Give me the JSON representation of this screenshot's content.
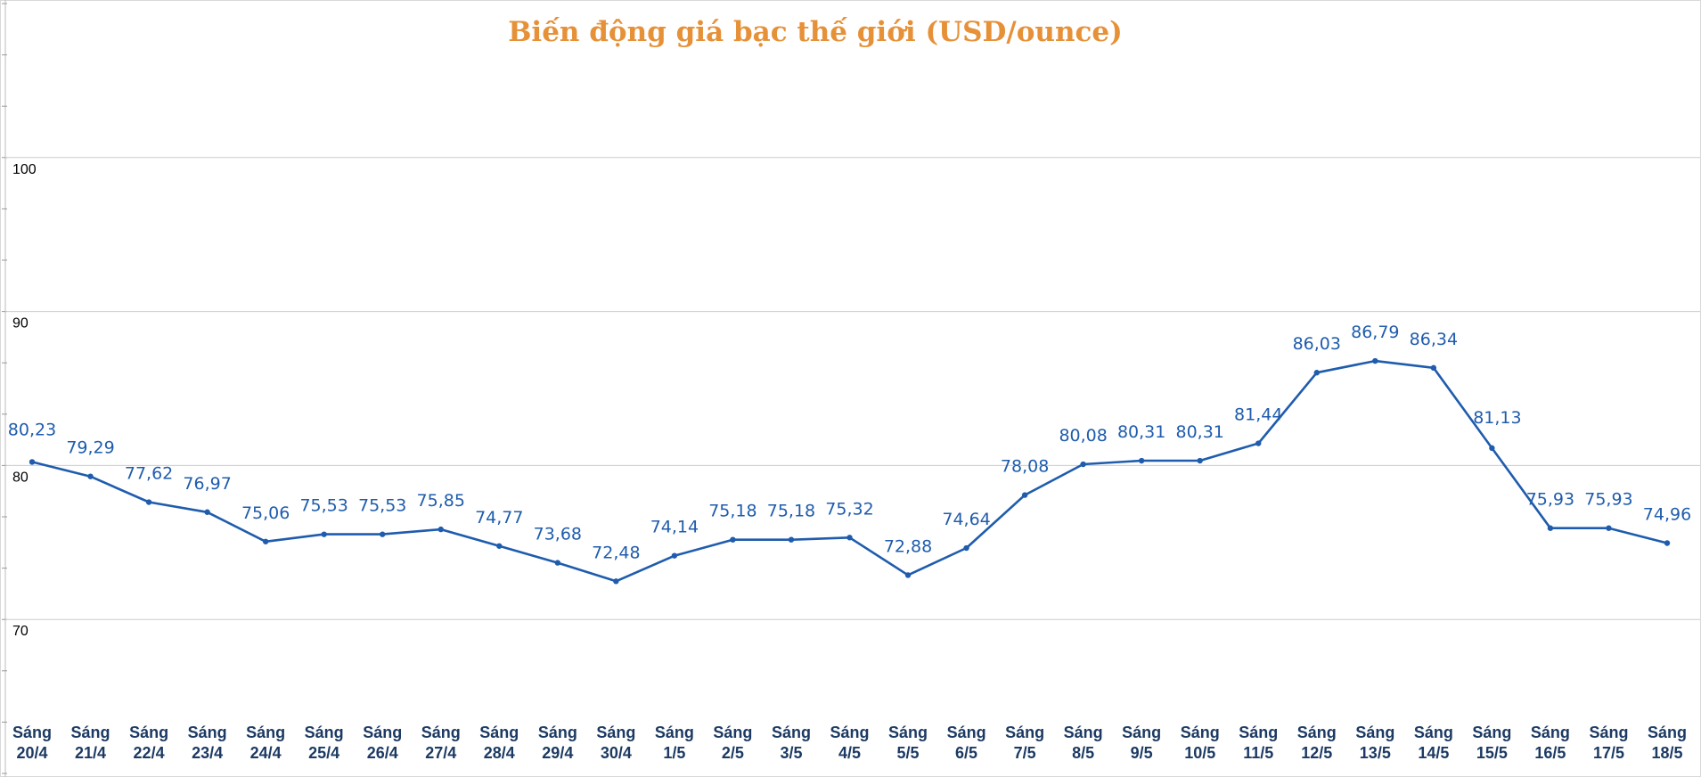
{
  "chart_data": {
    "type": "line",
    "title": "Biến động giá bạc thế giới (USD/ounce)",
    "xlabel": "",
    "ylabel": "",
    "ylim": [
      60,
      110
    ],
    "yticks": [
      "70",
      "80",
      "90",
      "100"
    ],
    "grid": true,
    "legend": "none",
    "colors": {
      "line": "#1f5cad",
      "title": "#e69138",
      "tick": "#1c3a63",
      "grid": "#cccccc"
    },
    "categories": [
      [
        "Sáng",
        "20/4"
      ],
      [
        "Sáng",
        "21/4"
      ],
      [
        "Sáng",
        "22/4"
      ],
      [
        "Sáng",
        "23/4"
      ],
      [
        "Sáng",
        "24/4"
      ],
      [
        "Sáng",
        "25/4"
      ],
      [
        "Sáng",
        "26/4"
      ],
      [
        "Sáng",
        "27/4"
      ],
      [
        "Sáng",
        "28/4"
      ],
      [
        "Sáng",
        "29/4"
      ],
      [
        "Sáng",
        "30/4"
      ],
      [
        "Sáng",
        "1/5"
      ],
      [
        "Sáng",
        "2/5"
      ],
      [
        "Sáng",
        "3/5"
      ],
      [
        "Sáng",
        "4/5"
      ],
      [
        "Sáng",
        "5/5"
      ],
      [
        "Sáng",
        "6/5"
      ],
      [
        "Sáng",
        "7/5"
      ],
      [
        "Sáng",
        "8/5"
      ],
      [
        "Sáng",
        "9/5"
      ],
      [
        "Sáng",
        "10/5"
      ],
      [
        "Sáng",
        "11/5"
      ],
      [
        "Sáng",
        "12/5"
      ],
      [
        "Sáng",
        "13/5"
      ],
      [
        "Sáng",
        "14/5"
      ],
      [
        "Sáng",
        "15/5"
      ],
      [
        "Sáng",
        "16/5"
      ],
      [
        "Sáng",
        "17/5"
      ],
      [
        "Sáng",
        "18/5"
      ]
    ],
    "series": [
      {
        "values": [
          80.23,
          79.29,
          77.62,
          76.97,
          75.06,
          75.53,
          75.53,
          75.85,
          74.77,
          73.68,
          72.48,
          74.14,
          75.18,
          75.18,
          75.32,
          72.88,
          74.64,
          78.08,
          80.08,
          80.31,
          80.31,
          81.44,
          86.03,
          86.79,
          86.34,
          81.13,
          75.93,
          75.93,
          74.96
        ],
        "labels": [
          "80,23",
          "79,29",
          "77,62",
          "76,97",
          "75,06",
          "75,53",
          "75,53",
          "75,85",
          "74,77",
          "73,68",
          "72,48",
          "74,14",
          "75,18",
          "75,18",
          "75,32",
          "72,88",
          "74,64",
          "78,08",
          "80,08",
          "80,31",
          "80,31",
          "81,44",
          "86,03",
          "86,79",
          "86,34",
          "81,13",
          "75,93",
          "75,93",
          "74,96"
        ]
      }
    ]
  }
}
